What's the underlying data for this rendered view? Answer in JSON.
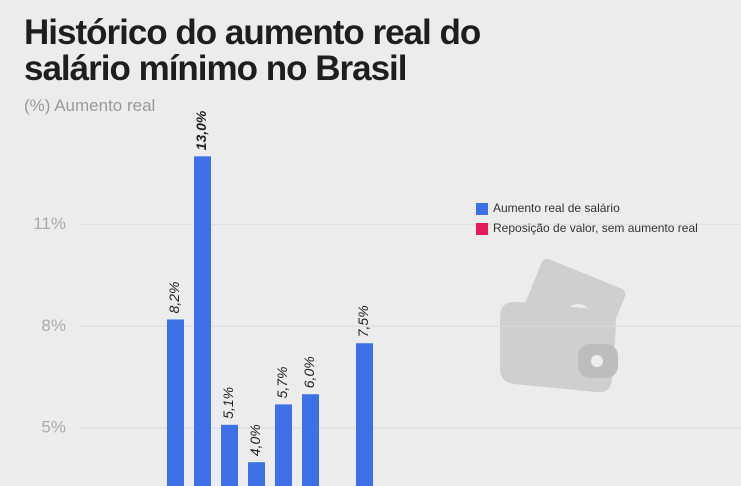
{
  "chart_data": {
    "type": "bar",
    "title": "Histórico do aumento real do salário mínimo no Brasil",
    "title_lines": [
      "Histórico do aumento real do",
      "salário mínimo no Brasil"
    ],
    "subtitle": "(%) Aumento real",
    "categories": [
      null,
      null,
      null,
      null,
      null,
      null,
      null,
      null
    ],
    "series": [
      {
        "name": "Aumento real de salário",
        "color": "#3d6fe6",
        "values": [
          8.2,
          13.0,
          5.1,
          4.0,
          5.7,
          6.0,
          null,
          7.5
        ],
        "value_labels": [
          "8,2%",
          "13,0%",
          "5,1%",
          "4,0%",
          "5,7%",
          "6,0%",
          null,
          "7,5%"
        ]
      },
      {
        "name": "Reposição de valor, sem aumento real",
        "color": "#e8195a",
        "values": [
          null,
          null,
          null,
          null,
          null,
          null,
          null,
          null
        ]
      }
    ],
    "ylim": [
      3.3,
      17.6
    ],
    "yticks": [
      {
        "value": 5,
        "label": "5%"
      },
      {
        "value": 8,
        "label": "8%"
      },
      {
        "value": 11,
        "label": "11%"
      }
    ],
    "grid": true
  }
}
